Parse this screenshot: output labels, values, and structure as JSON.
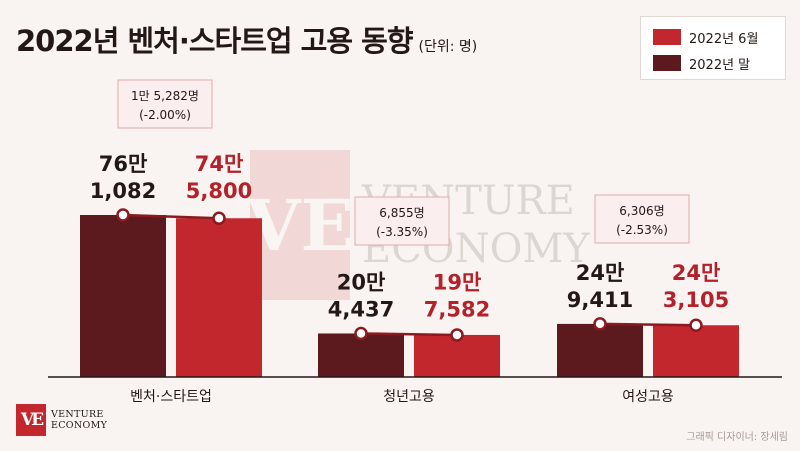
{
  "title": "2022년 벤처·스타트업 고용 동향",
  "unit": "(단위: 명)",
  "legend": [
    {
      "label": "2022년 6월",
      "color": "#c1272d"
    },
    {
      "label": "2022년 말",
      "color": "#5c1a1f"
    }
  ],
  "chart_data": {
    "type": "bar",
    "categories": [
      "벤처·스타트업",
      "청년고용",
      "여성고용"
    ],
    "series": [
      {
        "name": "2022년 말",
        "values": [
          761082,
          204437,
          249411
        ],
        "labels": [
          [
            "76만",
            "1,082"
          ],
          [
            "20만",
            "4,437"
          ],
          [
            "24만",
            "9,411"
          ]
        ]
      },
      {
        "name": "2022년 6월",
        "values": [
          745800,
          197582,
          243105
        ],
        "labels": [
          [
            "74만",
            "5,800"
          ],
          [
            "19만",
            "7,582"
          ],
          [
            "24만",
            "3,105"
          ]
        ]
      }
    ],
    "changes": [
      [
        "1만 5,282명",
        "(-2.00%)"
      ],
      [
        "6,855명",
        "(-3.35%)"
      ],
      [
        "6,306명",
        "(-2.53%)"
      ]
    ],
    "title": "2022년 벤처·스타트업 고용 동향",
    "ylim": [
      0,
      1000000
    ],
    "grid": false,
    "legend_position": "top-right"
  },
  "watermark": {
    "line1": "VENTURE",
    "line2": "ECONOMY"
  },
  "brand": {
    "mark": "VE",
    "line1": "VENTURE",
    "line2": "ECONOMY"
  },
  "credit": "그래픽 디자이너: 장세림"
}
